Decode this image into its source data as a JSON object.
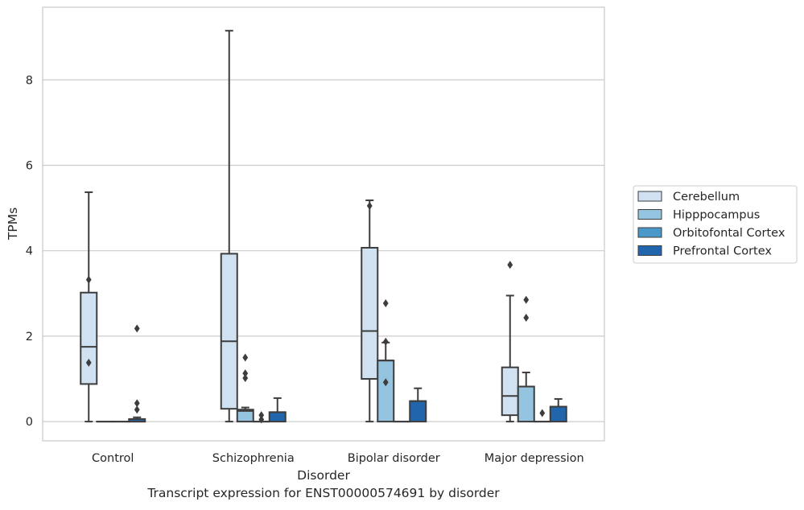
{
  "chart_data": {
    "type": "box",
    "xlabel": "Disorder",
    "ylabel": "TPMs",
    "caption": "Transcript expression for ENST00000574691 by disorder",
    "categories": [
      "Control",
      "Schizophrenia",
      "Bipolar disorder",
      "Major depression"
    ],
    "ylim": [
      -0.45,
      9.7
    ],
    "yticks": [
      0,
      2,
      4,
      6,
      8
    ],
    "grid": "horizontal",
    "legend_position": "right",
    "series": [
      {
        "name": "Cerebellum",
        "color": "#d0e1f2",
        "boxes": [
          {
            "min": 0,
            "q1": 0.88,
            "median": 1.75,
            "q3": 3.02,
            "max": 5.37,
            "outliers": [
              3.32,
              1.38
            ]
          },
          {
            "min": 0,
            "q1": 0.3,
            "median": 1.88,
            "q3": 3.93,
            "max": 9.15,
            "outliers": []
          },
          {
            "min": 0,
            "q1": 1.0,
            "median": 2.12,
            "q3": 4.07,
            "max": 5.18,
            "outliers": [
              5.05
            ]
          },
          {
            "min": 0,
            "q1": 0.15,
            "median": 0.6,
            "q3": 1.27,
            "max": 2.95,
            "outliers": [
              3.67
            ]
          }
        ]
      },
      {
        "name": "Hipppocampus",
        "color": "#94c4df",
        "boxes": [
          {
            "min": 0,
            "q1": 0,
            "median": 0,
            "q3": 0,
            "max": 0,
            "outliers": []
          },
          {
            "min": 0,
            "q1": 0,
            "median": 0.25,
            "q3": 0.28,
            "max": 0.33,
            "outliers": [
              1.5,
              1.13,
              1.02
            ]
          },
          {
            "min": 0,
            "q1": 0,
            "median": 1.43,
            "q3": 1.43,
            "max": 1.85,
            "outliers": [
              2.77,
              1.87,
              0.92
            ]
          },
          {
            "min": 0,
            "q1": 0,
            "median": 0.82,
            "q3": 0.82,
            "max": 1.15,
            "outliers": [
              2.85,
              2.43
            ]
          }
        ]
      },
      {
        "name": "Orbitofontal Cortex",
        "color": "#4a98c9",
        "boxes": [
          {
            "min": 0,
            "q1": 0,
            "median": 0,
            "q3": 0,
            "max": 0,
            "outliers": []
          },
          {
            "min": 0,
            "q1": 0,
            "median": 0,
            "q3": 0,
            "max": 0,
            "outliers": [
              0.15,
              0.05
            ]
          },
          {
            "min": 0,
            "q1": 0,
            "median": 0,
            "q3": 0,
            "max": 0,
            "outliers": []
          },
          {
            "min": 0,
            "q1": 0,
            "median": 0,
            "q3": 0,
            "max": 0,
            "outliers": [
              0.2
            ]
          }
        ]
      },
      {
        "name": "Prefrontal Cortex",
        "color": "#2166ac",
        "boxes": [
          {
            "min": 0,
            "q1": 0,
            "median": 0,
            "q3": 0.06,
            "max": 0.1,
            "outliers": [
              2.18,
              0.43,
              0.28
            ]
          },
          {
            "min": 0,
            "q1": 0,
            "median": 0.22,
            "q3": 0.22,
            "max": 0.55,
            "outliers": []
          },
          {
            "min": 0,
            "q1": 0,
            "median": 0.48,
            "q3": 0.48,
            "max": 0.78,
            "outliers": []
          },
          {
            "min": 0,
            "q1": 0,
            "median": 0.35,
            "q3": 0.35,
            "max": 0.53,
            "outliers": []
          }
        ]
      }
    ]
  }
}
